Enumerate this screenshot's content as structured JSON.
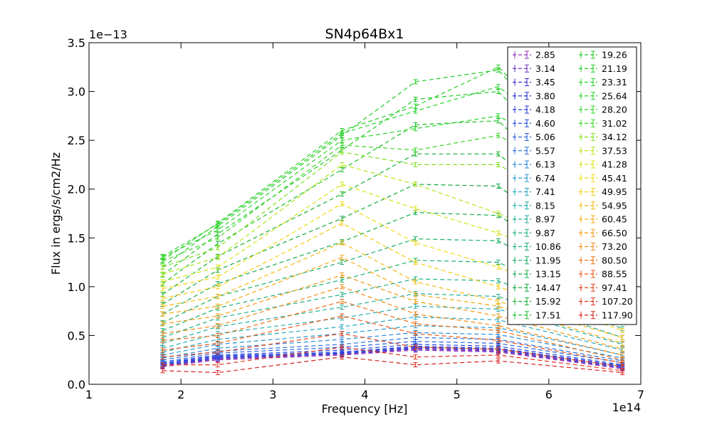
{
  "chart_data": {
    "type": "line",
    "title": "SN4p64Bx1",
    "xlabel": "Frequency [Hz]",
    "ylabel": "Flux in ergs/s/cm2/Hz",
    "x_multiplier_label": "1e14",
    "y_multiplier_label": "1e−13",
    "xlim": [
      1,
      7
    ],
    "ylim": [
      0,
      3.5
    ],
    "x_ticks": [
      1,
      2,
      3,
      4,
      5,
      6,
      7
    ],
    "x_tick_labels": [
      "1",
      "2",
      "3",
      "4",
      "5",
      "6",
      "7"
    ],
    "y_ticks": [
      0,
      0.5,
      1.0,
      1.5,
      2.0,
      2.5,
      3.0,
      3.5
    ],
    "y_tick_labels": [
      "0.0",
      "0.5",
      "1.0",
      "1.5",
      "2.0",
      "2.5",
      "3.0",
      "3.5"
    ],
    "grid": false,
    "line_style": "dashed",
    "legend": {
      "placement": "top-right",
      "columns": 2,
      "entries": [
        "2.85",
        "3.14",
        "3.45",
        "3.80",
        "4.18",
        "4.60",
        "5.06",
        "5.57",
        "6.13",
        "6.74",
        "7.41",
        "8.15",
        "8.97",
        "9.87",
        "10.86",
        "11.95",
        "13.15",
        "14.47",
        "15.92",
        "17.51",
        "19.26",
        "21.19",
        "23.31",
        "25.64",
        "28.20",
        "31.02",
        "34.12",
        "37.53",
        "41.28",
        "45.41",
        "49.95",
        "54.95",
        "60.45",
        "66.50",
        "73.20",
        "80.50",
        "88.55",
        "97.41",
        "107.20",
        "117.90"
      ]
    },
    "x": [
      1.8,
      2.4,
      3.75,
      4.55,
      5.45,
      6.8
    ],
    "series_colors": [
      "#8e2fb5",
      "#6c2fc2",
      "#3b30cf",
      "#1f2fd6",
      "#2438d8",
      "#2448dc",
      "#2a5ee0",
      "#2b72dd",
      "#2a88d8",
      "#2a98cf",
      "#27a6c0",
      "#25acae",
      "#21ae9a",
      "#1fb088",
      "#1caf72",
      "#1aae60",
      "#17ac4e",
      "#14aa3c",
      "#18b232",
      "#1ec02a",
      "#20c826",
      "#22cc24",
      "#26d028",
      "#2ad42c",
      "#2ed62a",
      "#3cd626",
      "#80e01e",
      "#b4e618",
      "#d8e414",
      "#f0dc12",
      "#f4cc10",
      "#f4bc10",
      "#f4ac10",
      "#f49c10",
      "#f48a12",
      "#f07014",
      "#ec5816",
      "#e64018",
      "#e0301a",
      "#d8201c"
    ],
    "series": [
      {
        "values": [
          0.18,
          0.25,
          0.3,
          0.35,
          0.33,
          0.16
        ]
      },
      {
        "values": [
          0.19,
          0.26,
          0.31,
          0.36,
          0.34,
          0.17
        ]
      },
      {
        "values": [
          0.19,
          0.27,
          0.31,
          0.37,
          0.35,
          0.17
        ]
      },
      {
        "values": [
          0.2,
          0.28,
          0.32,
          0.38,
          0.36,
          0.18
        ]
      },
      {
        "values": [
          0.21,
          0.29,
          0.33,
          0.39,
          0.37,
          0.19
        ]
      },
      {
        "values": [
          0.22,
          0.3,
          0.35,
          0.41,
          0.39,
          0.2
        ]
      },
      {
        "values": [
          0.23,
          0.32,
          0.38,
          0.44,
          0.42,
          0.22
        ]
      },
      {
        "values": [
          0.25,
          0.34,
          0.41,
          0.48,
          0.46,
          0.24
        ]
      },
      {
        "values": [
          0.27,
          0.37,
          0.46,
          0.53,
          0.51,
          0.27
        ]
      },
      {
        "values": [
          0.3,
          0.41,
          0.52,
          0.6,
          0.58,
          0.3
        ]
      },
      {
        "values": [
          0.33,
          0.46,
          0.59,
          0.69,
          0.66,
          0.35
        ]
      },
      {
        "values": [
          0.37,
          0.52,
          0.68,
          0.8,
          0.77,
          0.41
        ]
      },
      {
        "values": [
          0.42,
          0.59,
          0.79,
          0.93,
          0.9,
          0.48
        ]
      },
      {
        "values": [
          0.48,
          0.68,
          0.92,
          1.08,
          1.06,
          0.57
        ]
      },
      {
        "values": [
          0.55,
          0.78,
          1.07,
          1.27,
          1.25,
          0.68
        ]
      },
      {
        "values": [
          0.63,
          0.9,
          1.25,
          1.49,
          1.47,
          0.81
        ]
      },
      {
        "values": [
          0.72,
          1.03,
          1.46,
          1.76,
          1.73,
          0.96
        ]
      },
      {
        "values": [
          0.82,
          1.17,
          1.7,
          2.05,
          2.03,
          1.13
        ]
      },
      {
        "values": [
          0.92,
          1.31,
          1.95,
          2.36,
          2.36,
          1.31
        ]
      },
      {
        "values": [
          1.03,
          1.44,
          2.2,
          2.66,
          2.7,
          1.5
        ]
      },
      {
        "values": [
          1.12,
          1.54,
          2.4,
          2.92,
          3.0,
          1.68
        ]
      },
      {
        "values": [
          1.2,
          1.62,
          2.55,
          3.1,
          3.22,
          1.85
        ]
      },
      {
        "values": [
          1.27,
          1.65,
          2.6,
          2.85,
          3.25,
          2.0
        ]
      },
      {
        "values": [
          1.31,
          1.64,
          2.57,
          2.8,
          3.05,
          2.1
        ]
      },
      {
        "values": [
          1.3,
          1.58,
          2.5,
          2.62,
          2.75,
          2.05
        ]
      },
      {
        "values": [
          1.26,
          1.5,
          2.45,
          2.4,
          2.55,
          1.85
        ]
      },
      {
        "values": [
          1.2,
          1.4,
          2.38,
          2.25,
          2.25,
          1.55
        ]
      },
      {
        "values": [
          1.13,
          1.3,
          2.25,
          2.05,
          1.75,
          1.25
        ]
      },
      {
        "values": [
          1.05,
          1.2,
          2.05,
          1.8,
          1.55,
          1.0
        ]
      },
      {
        "values": [
          0.98,
          1.1,
          1.85,
          1.45,
          1.2,
          0.7
        ]
      },
      {
        "values": [
          0.88,
          1.0,
          1.65,
          1.25,
          1.0,
          0.55
        ]
      },
      {
        "values": [
          0.8,
          0.9,
          1.45,
          1.05,
          0.85,
          0.48
        ]
      },
      {
        "values": [
          0.72,
          0.8,
          1.3,
          0.92,
          0.8,
          0.42
        ]
      },
      {
        "values": [
          0.62,
          0.7,
          1.12,
          0.85,
          0.7,
          0.36
        ]
      },
      {
        "values": [
          0.52,
          0.6,
          1.0,
          0.72,
          0.6,
          0.3
        ]
      },
      {
        "values": [
          0.45,
          0.5,
          0.85,
          0.62,
          0.55,
          0.25
        ]
      },
      {
        "values": [
          0.35,
          0.42,
          0.7,
          0.52,
          0.45,
          0.22
        ]
      },
      {
        "values": [
          0.28,
          0.33,
          0.52,
          0.38,
          0.36,
          0.18
        ]
      },
      {
        "values": [
          0.2,
          0.2,
          0.38,
          0.28,
          0.3,
          0.14
        ]
      },
      {
        "values": [
          0.14,
          0.12,
          0.28,
          0.2,
          0.24,
          0.12
        ]
      }
    ]
  }
}
